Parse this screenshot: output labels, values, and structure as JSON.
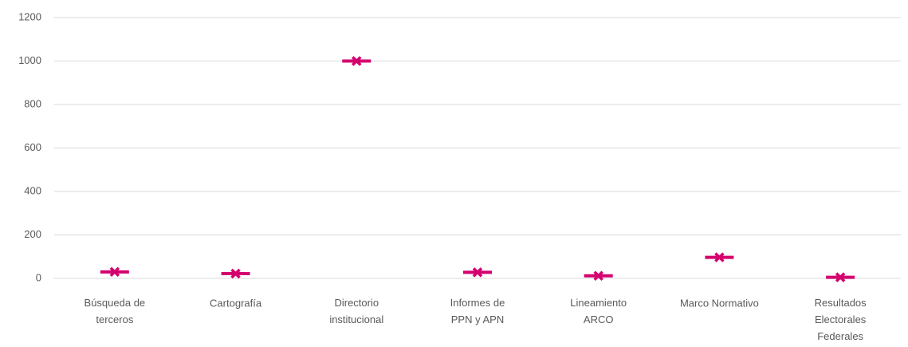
{
  "chart_data": {
    "type": "marker",
    "categories": [
      "Búsqueda de\nterceros",
      "Cartografía",
      "Directorio\ninstitucional",
      "Informes de\nPPN y APN",
      "Lineamiento\nARCO",
      "Marco Normativo",
      "Resultados\nElectorales\nFederales"
    ],
    "values": [
      30,
      22,
      1000,
      28,
      12,
      97,
      5
    ],
    "color": "#d4006e",
    "ylim": [
      0,
      1200
    ],
    "yticks": [
      0,
      200,
      400,
      600,
      800,
      1000,
      1200
    ],
    "grid": true
  }
}
